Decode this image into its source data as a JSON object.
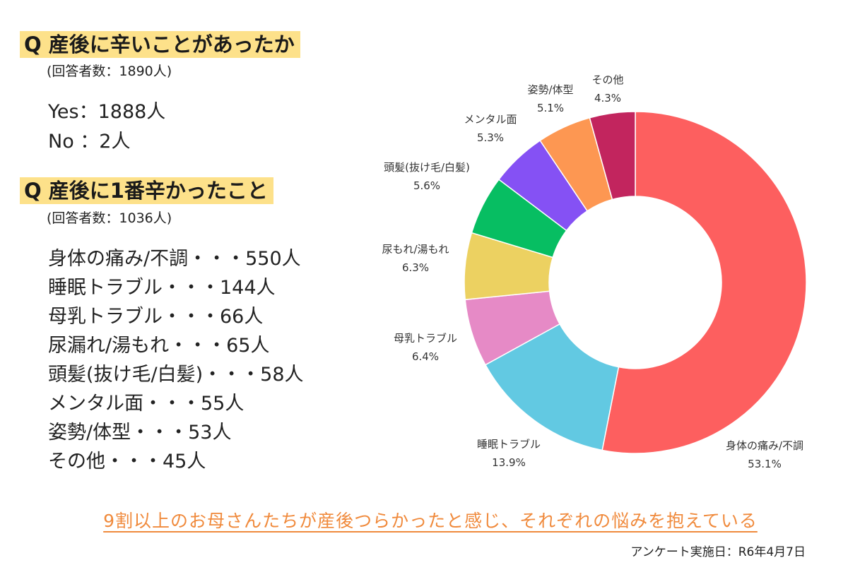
{
  "question1": {
    "title": "Q 産後に辛いことがあったか",
    "respondents": "(回答者数：1890人)",
    "yes": "Yes：1888人",
    "no": "No ：2人"
  },
  "question2": {
    "title": "Q 産後に1番辛かったこと",
    "respondents": "(回答者数：1036人)",
    "items": [
      "身体の痛み/不調・・・550人",
      "睡眠トラブル・・・144人",
      "母乳トラブル・・・66人",
      "尿漏れ/湯もれ・・・65人",
      "頭髪(抜け毛/白髪)・・・58人",
      "メンタル面・・・55人",
      "姿勢/体型・・・53人",
      "その他・・・45人"
    ]
  },
  "chart_data": {
    "type": "pie",
    "style": "donut",
    "categories": [
      "身体の痛み/不調",
      "睡眠トラブル",
      "母乳トラブル",
      "尿もれ/湯もれ",
      "頭髪(抜け毛/白髪)",
      "メンタル面",
      "姿勢/体型",
      "その他"
    ],
    "values": [
      53.1,
      13.9,
      6.4,
      6.3,
      5.6,
      5.3,
      5.1,
      4.3
    ],
    "value_labels": [
      "53.1%",
      "13.9%",
      "6.4%",
      "6.3%",
      "5.6%",
      "5.3%",
      "5.1%",
      "4.3%"
    ],
    "colors": [
      "#fd5f5f",
      "#62c9e2",
      "#e68ac6",
      "#ecd161",
      "#07be62",
      "#8551f4",
      "#fd9752",
      "#c2255e"
    ],
    "start": "12 o'clock",
    "direction": "clockwise"
  },
  "footer": {
    "message": "9割以上のお母さんたちが産後つらかったと感じ、それぞれの悩みを抱えている",
    "survey_date": "アンケート実施日：R6年4月7日"
  }
}
